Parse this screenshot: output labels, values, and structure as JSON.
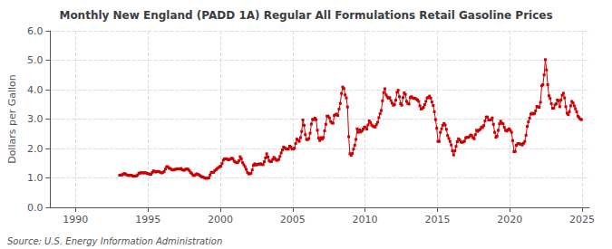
{
  "chart_data": {
    "type": "line",
    "title": "Monthly New England (PADD 1A) Regular All Formulations Retail Gasoline Prices",
    "ylabel": "Dollars per Gallon",
    "annotation": "Source: U.S. Energy Information Administration",
    "color": "#cc0000",
    "marker": "square",
    "line_style": "solid",
    "grid": true,
    "xlim": [
      1988.25,
      2025.5
    ],
    "xticks": [
      1990,
      1995,
      2000,
      2005,
      2010,
      2015,
      2020,
      2025
    ],
    "ylim": [
      0,
      6
    ],
    "yticks": [
      {
        "value": 0,
        "label": "0.0"
      },
      {
        "value": 1,
        "label": "1.0"
      },
      {
        "value": 2,
        "label": "2.0"
      },
      {
        "value": 3,
        "label": "3.0"
      },
      {
        "value": 4,
        "label": "4.0"
      },
      {
        "value": 5,
        "label": "5.0"
      },
      {
        "value": 6,
        "label": "6.0"
      }
    ],
    "x": [
      1993.041667,
      1993.125,
      1993.208333,
      1993.291667,
      1993.375,
      1993.458333,
      1993.541667,
      1993.625,
      1993.708333,
      1993.791667,
      1993.875,
      1993.958333,
      1994.041667,
      1994.125,
      1994.208333,
      1994.291667,
      1994.375,
      1994.458333,
      1994.541667,
      1994.625,
      1994.708333,
      1994.791667,
      1994.875,
      1994.958333,
      1995.041667,
      1995.125,
      1995.208333,
      1995.291667,
      1995.375,
      1995.458333,
      1995.541667,
      1995.625,
      1995.708333,
      1995.791667,
      1995.875,
      1995.958333,
      1996.041667,
      1996.125,
      1996.208333,
      1996.291667,
      1996.375,
      1996.458333,
      1996.541667,
      1996.625,
      1996.708333,
      1996.791667,
      1996.875,
      1996.958333,
      1997.041667,
      1997.125,
      1997.208333,
      1997.291667,
      1997.375,
      1997.458333,
      1997.541667,
      1997.625,
      1997.708333,
      1997.791667,
      1997.875,
      1997.958333,
      1998.041667,
      1998.125,
      1998.208333,
      1998.291667,
      1998.375,
      1998.458333,
      1998.541667,
      1998.625,
      1998.708333,
      1998.791667,
      1998.875,
      1998.958333,
      1999.041667,
      1999.125,
      1999.208333,
      1999.291667,
      1999.375,
      1999.458333,
      1999.541667,
      1999.625,
      1999.708333,
      1999.791667,
      1999.875,
      1999.958333,
      2000.041667,
      2000.125,
      2000.208333,
      2000.291667,
      2000.375,
      2000.458333,
      2000.541667,
      2000.625,
      2000.708333,
      2000.791667,
      2000.875,
      2000.958333,
      2001.041667,
      2001.125,
      2001.208333,
      2001.291667,
      2001.375,
      2001.458333,
      2001.541667,
      2001.625,
      2001.708333,
      2001.791667,
      2001.875,
      2001.958333,
      2002.041667,
      2002.125,
      2002.208333,
      2002.291667,
      2002.375,
      2002.458333,
      2002.541667,
      2002.625,
      2002.708333,
      2002.791667,
      2002.875,
      2002.958333,
      2003.041667,
      2003.125,
      2003.208333,
      2003.291667,
      2003.375,
      2003.458333,
      2003.541667,
      2003.625,
      2003.708333,
      2003.791667,
      2003.875,
      2003.958333,
      2004.041667,
      2004.125,
      2004.208333,
      2004.291667,
      2004.375,
      2004.458333,
      2004.541667,
      2004.625,
      2004.708333,
      2004.791667,
      2004.875,
      2004.958333,
      2005.041667,
      2005.125,
      2005.208333,
      2005.291667,
      2005.375,
      2005.458333,
      2005.541667,
      2005.625,
      2005.708333,
      2005.791667,
      2005.875,
      2005.958333,
      2006.041667,
      2006.125,
      2006.208333,
      2006.291667,
      2006.375,
      2006.458333,
      2006.541667,
      2006.625,
      2006.708333,
      2006.791667,
      2006.875,
      2006.958333,
      2007.041667,
      2007.125,
      2007.208333,
      2007.291667,
      2007.375,
      2007.458333,
      2007.541667,
      2007.625,
      2007.708333,
      2007.791667,
      2007.875,
      2007.958333,
      2008.041667,
      2008.125,
      2008.208333,
      2008.291667,
      2008.375,
      2008.458333,
      2008.541667,
      2008.625,
      2008.708333,
      2008.791667,
      2008.875,
      2008.958333,
      2009.041667,
      2009.125,
      2009.208333,
      2009.291667,
      2009.375,
      2009.458333,
      2009.541667,
      2009.625,
      2009.708333,
      2009.791667,
      2009.875,
      2009.958333,
      2010.041667,
      2010.125,
      2010.208333,
      2010.291667,
      2010.375,
      2010.458333,
      2010.541667,
      2010.625,
      2010.708333,
      2010.791667,
      2010.875,
      2010.958333,
      2011.041667,
      2011.125,
      2011.208333,
      2011.291667,
      2011.375,
      2011.458333,
      2011.541667,
      2011.625,
      2011.708333,
      2011.791667,
      2011.875,
      2011.958333,
      2012.041667,
      2012.125,
      2012.208333,
      2012.291667,
      2012.375,
      2012.458333,
      2012.541667,
      2012.625,
      2012.708333,
      2012.791667,
      2012.875,
      2012.958333,
      2013.041667,
      2013.125,
      2013.208333,
      2013.291667,
      2013.375,
      2013.458333,
      2013.541667,
      2013.625,
      2013.708333,
      2013.791667,
      2013.875,
      2013.958333,
      2014.041667,
      2014.125,
      2014.208333,
      2014.291667,
      2014.375,
      2014.458333,
      2014.541667,
      2014.625,
      2014.708333,
      2014.791667,
      2014.875,
      2014.958333,
      2015.041667,
      2015.125,
      2015.208333,
      2015.291667,
      2015.375,
      2015.458333,
      2015.541667,
      2015.625,
      2015.708333,
      2015.791667,
      2015.875,
      2015.958333,
      2016.041667,
      2016.125,
      2016.208333,
      2016.291667,
      2016.375,
      2016.458333,
      2016.541667,
      2016.625,
      2016.708333,
      2016.791667,
      2016.875,
      2016.958333,
      2017.041667,
      2017.125,
      2017.208333,
      2017.291667,
      2017.375,
      2017.458333,
      2017.541667,
      2017.625,
      2017.708333,
      2017.791667,
      2017.875,
      2017.958333,
      2018.041667,
      2018.125,
      2018.208333,
      2018.291667,
      2018.375,
      2018.458333,
      2018.541667,
      2018.625,
      2018.708333,
      2018.791667,
      2018.875,
      2018.958333,
      2019.041667,
      2019.125,
      2019.208333,
      2019.291667,
      2019.375,
      2019.458333,
      2019.541667,
      2019.625,
      2019.708333,
      2019.791667,
      2019.875,
      2019.958333,
      2020.041667,
      2020.125,
      2020.208333,
      2020.291667,
      2020.375,
      2020.458333,
      2020.541667,
      2020.625,
      2020.708333,
      2020.791667,
      2020.875,
      2020.958333,
      2021.041667,
      2021.125,
      2021.208333,
      2021.291667,
      2021.375,
      2021.458333,
      2021.541667,
      2021.625,
      2021.708333,
      2021.791667,
      2021.875,
      2021.958333,
      2022.041667,
      2022.125,
      2022.208333,
      2022.291667,
      2022.375,
      2022.458333,
      2022.541667,
      2022.625,
      2022.708333,
      2022.791667,
      2022.875,
      2022.958333,
      2023.041667,
      2023.125,
      2023.208333,
      2023.291667,
      2023.375,
      2023.458333,
      2023.541667,
      2023.625,
      2023.708333,
      2023.791667,
      2023.875,
      2023.958333,
      2024.041667,
      2024.125,
      2024.208333,
      2024.291667,
      2024.375,
      2024.458333,
      2024.541667,
      2024.625,
      2024.708333,
      2024.791667,
      2024.875,
      2024.958333
    ],
    "values": [
      1.09,
      1.1,
      1.1,
      1.13,
      1.15,
      1.13,
      1.1,
      1.09,
      1.08,
      1.09,
      1.09,
      1.06,
      1.06,
      1.06,
      1.07,
      1.1,
      1.16,
      1.17,
      1.17,
      1.18,
      1.17,
      1.18,
      1.17,
      1.15,
      1.14,
      1.13,
      1.12,
      1.18,
      1.24,
      1.22,
      1.2,
      1.22,
      1.22,
      1.21,
      1.18,
      1.17,
      1.19,
      1.22,
      1.3,
      1.38,
      1.38,
      1.33,
      1.32,
      1.29,
      1.27,
      1.28,
      1.29,
      1.3,
      1.31,
      1.31,
      1.3,
      1.32,
      1.28,
      1.26,
      1.27,
      1.3,
      1.3,
      1.29,
      1.24,
      1.18,
      1.14,
      1.09,
      1.08,
      1.11,
      1.14,
      1.12,
      1.1,
      1.07,
      1.04,
      1.03,
      1.01,
      0.99,
      0.99,
      0.99,
      1.0,
      1.1,
      1.19,
      1.19,
      1.19,
      1.25,
      1.28,
      1.32,
      1.35,
      1.38,
      1.4,
      1.49,
      1.6,
      1.65,
      1.65,
      1.65,
      1.62,
      1.62,
      1.65,
      1.67,
      1.65,
      1.57,
      1.54,
      1.52,
      1.52,
      1.58,
      1.72,
      1.65,
      1.52,
      1.45,
      1.38,
      1.29,
      1.19,
      1.14,
      1.14,
      1.16,
      1.27,
      1.43,
      1.48,
      1.44,
      1.45,
      1.47,
      1.47,
      1.48,
      1.46,
      1.45,
      1.55,
      1.68,
      1.82,
      1.71,
      1.59,
      1.55,
      1.56,
      1.63,
      1.7,
      1.65,
      1.6,
      1.6,
      1.63,
      1.73,
      1.85,
      1.95,
      2.05,
      2.02,
      1.99,
      1.98,
      1.98,
      2.08,
      2.05,
      1.99,
      1.98,
      2.01,
      2.17,
      2.32,
      2.28,
      2.24,
      2.37,
      2.58,
      2.97,
      2.79,
      2.47,
      2.31,
      2.3,
      2.34,
      2.52,
      2.83,
      2.99,
      2.98,
      3.03,
      2.98,
      2.62,
      2.35,
      2.27,
      2.37,
      2.32,
      2.37,
      2.6,
      2.82,
      3.1,
      3.1,
      3.04,
      2.92,
      2.87,
      2.86,
      3.12,
      3.15,
      3.17,
      3.12,
      3.34,
      3.53,
      3.87,
      4.09,
      4.04,
      3.82,
      3.72,
      3.41,
      2.4,
      1.82,
      1.77,
      1.83,
      1.98,
      2.11,
      2.31,
      2.67,
      2.55,
      2.63,
      2.56,
      2.6,
      2.66,
      2.73,
      2.72,
      2.66,
      2.8,
      2.94,
      2.88,
      2.8,
      2.76,
      2.74,
      2.73,
      2.81,
      2.89,
      3.05,
      3.18,
      3.29,
      3.62,
      3.9,
      4.03,
      3.82,
      3.75,
      3.71,
      3.73,
      3.63,
      3.54,
      3.47,
      3.49,
      3.64,
      3.91,
      3.98,
      3.76,
      3.52,
      3.47,
      3.73,
      3.89,
      3.84,
      3.6,
      3.53,
      3.51,
      3.73,
      3.76,
      3.72,
      3.7,
      3.71,
      3.68,
      3.65,
      3.6,
      3.45,
      3.34,
      3.36,
      3.4,
      3.49,
      3.6,
      3.72,
      3.73,
      3.78,
      3.71,
      3.58,
      3.46,
      3.25,
      2.98,
      2.69,
      2.24,
      2.24,
      2.55,
      2.67,
      2.79,
      2.85,
      2.8,
      2.65,
      2.44,
      2.34,
      2.24,
      2.12,
      1.92,
      1.78,
      1.92,
      2.07,
      2.23,
      2.33,
      2.29,
      2.22,
      2.21,
      2.22,
      2.25,
      2.36,
      2.38,
      2.38,
      2.4,
      2.46,
      2.44,
      2.37,
      2.33,
      2.47,
      2.62,
      2.58,
      2.62,
      2.65,
      2.73,
      2.71,
      2.78,
      2.94,
      3.07,
      3.07,
      2.97,
      2.97,
      2.98,
      3.04,
      2.82,
      2.55,
      2.38,
      2.42,
      2.62,
      2.84,
      2.93,
      2.86,
      2.84,
      2.72,
      2.62,
      2.59,
      2.63,
      2.67,
      2.62,
      2.55,
      2.27,
      1.89,
      1.9,
      2.11,
      2.16,
      2.17,
      2.15,
      2.15,
      2.12,
      2.18,
      2.24,
      2.45,
      2.75,
      2.91,
      3.03,
      3.17,
      3.2,
      3.17,
      3.19,
      3.28,
      3.43,
      3.41,
      3.4,
      3.57,
      4.13,
      4.17,
      4.5,
      5.02,
      4.67,
      4.17,
      3.79,
      3.7,
      3.52,
      3.37,
      3.37,
      3.48,
      3.52,
      3.65,
      3.62,
      3.42,
      3.65,
      3.81,
      3.88,
      3.72,
      3.42,
      3.2,
      3.15,
      3.25,
      3.45,
      3.6,
      3.55,
      3.45,
      3.35,
      3.25,
      3.1,
      3.05,
      3.0,
      2.98
    ]
  }
}
